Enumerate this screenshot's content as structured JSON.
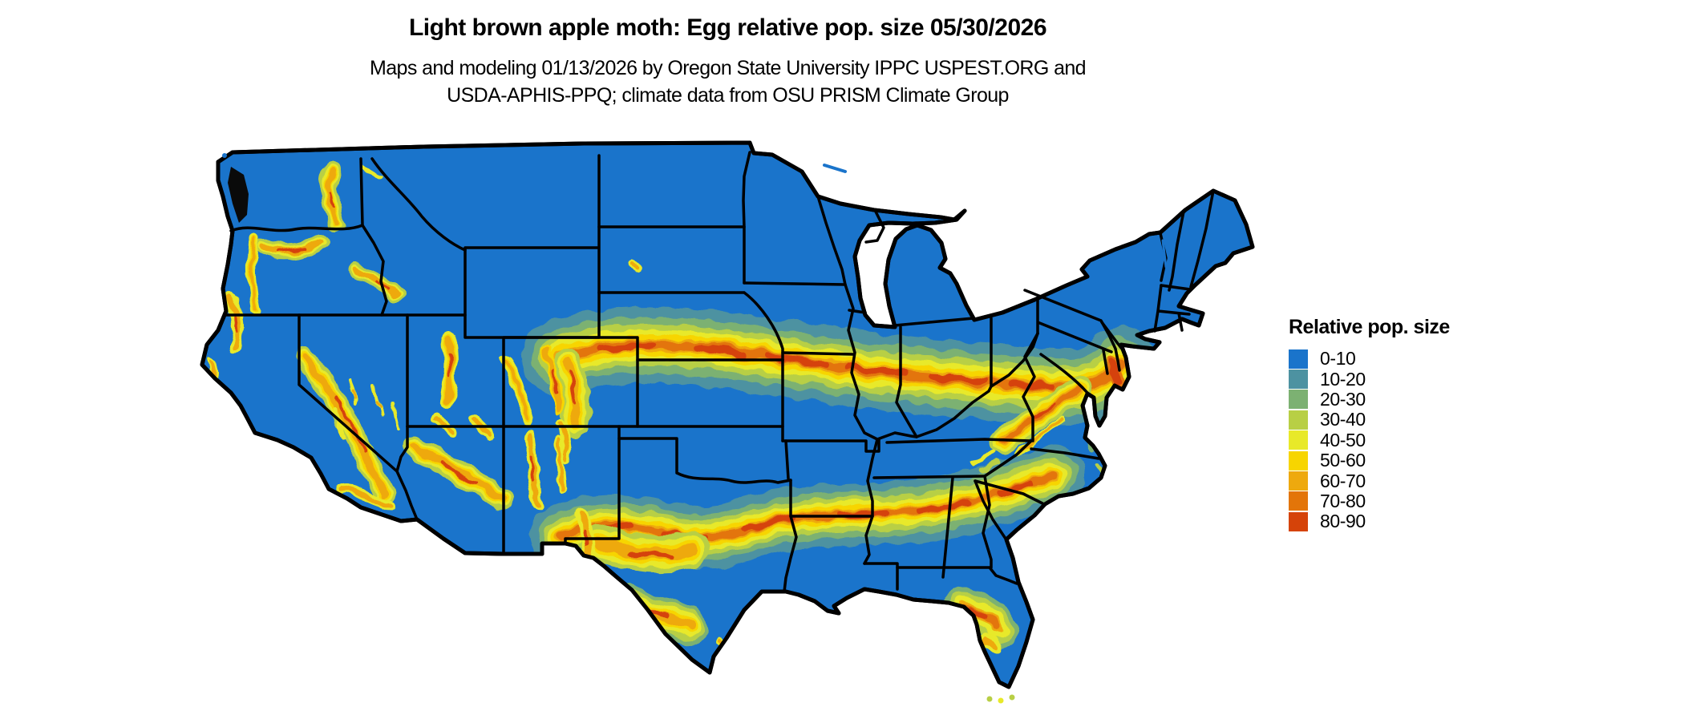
{
  "header": {
    "title": "Light brown apple moth: Egg relative pop. size 05/30/2026",
    "subtitle_line1": "Maps and modeling 01/13/2026 by Oregon State University IPPC USPEST.ORG and",
    "subtitle_line2": "USDA-APHIS-PPQ; climate data from OSU PRISM Climate Group"
  },
  "legend": {
    "title": "Relative pop. size",
    "items": [
      {
        "label": "0-10",
        "color": "#1a74cb"
      },
      {
        "label": "10-20",
        "color": "#4d92a1"
      },
      {
        "label": "20-30",
        "color": "#7cb172"
      },
      {
        "label": "30-40",
        "color": "#b8cf45"
      },
      {
        "label": "40-50",
        "color": "#e8e929"
      },
      {
        "label": "50-60",
        "color": "#f7d500"
      },
      {
        "label": "60-70",
        "color": "#eea90e"
      },
      {
        "label": "70-80",
        "color": "#e37509"
      },
      {
        "label": "80-90",
        "color": "#d54309"
      }
    ]
  },
  "map": {
    "area": "Contiguous United States",
    "land_base_color": "#1a74cb",
    "state_border_color": "#000000",
    "water_color": "#ffffff"
  }
}
